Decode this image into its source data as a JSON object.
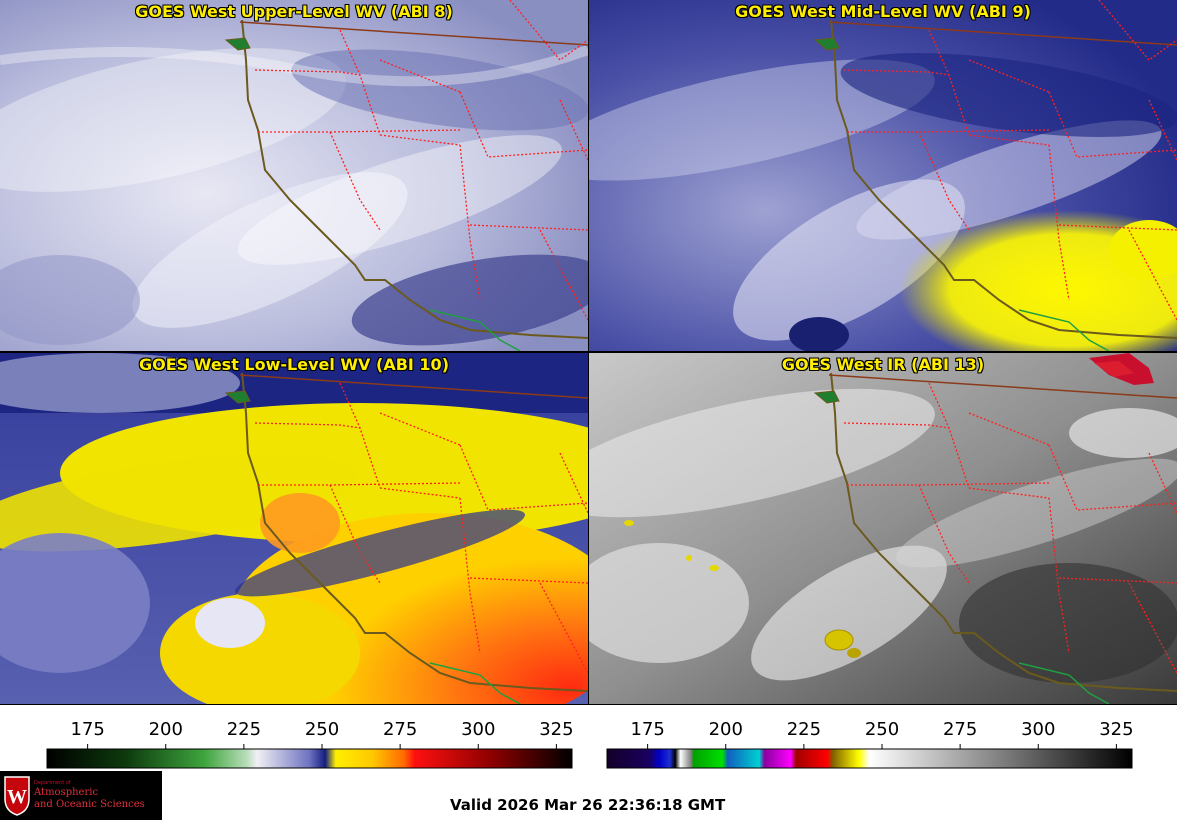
{
  "panels": {
    "upper": {
      "title": "GOES West Upper-Level WV (ABI 8)"
    },
    "mid": {
      "title": "GOES West Mid-Level WV (ABI 9)"
    },
    "low": {
      "title": "GOES West Low-Level WV (ABI 10)"
    },
    "ir": {
      "title": "GOES West IR (ABI 13)"
    }
  },
  "colorbars": {
    "wv": {
      "ticks": [
        "175",
        "200",
        "225",
        "250",
        "275",
        "300",
        "325"
      ],
      "tick_values": [
        175,
        200,
        225,
        250,
        275,
        300,
        325
      ],
      "range": [
        162,
        330
      ]
    },
    "ir": {
      "ticks": [
        "175",
        "200",
        "225",
        "250",
        "275",
        "300",
        "325"
      ],
      "tick_values": [
        175,
        200,
        225,
        250,
        275,
        300,
        325
      ],
      "range": [
        162,
        330
      ]
    }
  },
  "logo": {
    "dept": "Department of",
    "name_line1": "Atmospheric",
    "name_line2": "and Oceanic Sciences"
  },
  "footer": {
    "valid": "Valid 2026 Mar 26 22:36:18 GMT"
  },
  "colors": {
    "title": "#ffee00",
    "coast": "#6b5a1e",
    "state_border": "#ff2020",
    "country_border": "#8b3a1a",
    "mexico_border": "#1fa040"
  }
}
